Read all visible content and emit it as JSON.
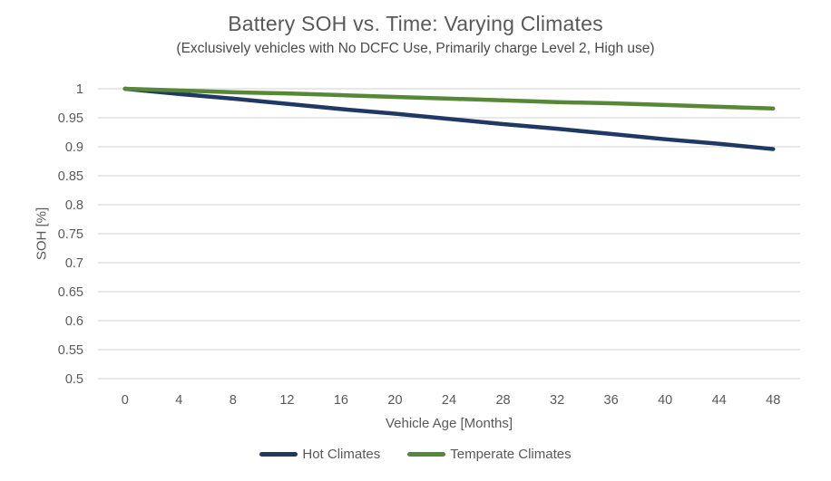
{
  "chart": {
    "title": "Battery SOH vs. Time: Varying Climates",
    "subtitle": "(Exclusively vehicles with No DCFC Use, Primarily charge Level 2, High use)",
    "xlabel": "Vehicle Age [Months]",
    "ylabel": "SOH [%]"
  },
  "chart_data": {
    "type": "line",
    "title": "Battery SOH vs. Time: Varying Climates",
    "subtitle": "(Exclusively vehicles with No DCFC Use, Primarily charge Level 2, High use)",
    "xlabel": "Vehicle Age [Months]",
    "ylabel": "SOH [%]",
    "x": [
      0,
      4,
      8,
      12,
      16,
      20,
      24,
      28,
      32,
      36,
      40,
      44,
      48
    ],
    "series": [
      {
        "name": "Hot Climates",
        "color": "#1F3864",
        "values": [
          1.0,
          0.991,
          0.983,
          0.974,
          0.965,
          0.957,
          0.948,
          0.939,
          0.931,
          0.922,
          0.913,
          0.905,
          0.896
        ]
      },
      {
        "name": "Temperate Climates",
        "color": "#568838",
        "values": [
          1.0,
          0.997,
          0.994,
          0.992,
          0.989,
          0.986,
          0.983,
          0.98,
          0.977,
          0.975,
          0.972,
          0.969,
          0.966
        ]
      }
    ],
    "ylim": [
      0.5,
      1.0
    ],
    "ytick_labels": [
      "1",
      "0.95",
      "0.9",
      "0.85",
      "0.8",
      "0.75",
      "0.7",
      "0.65",
      "0.6",
      "0.55",
      "0.5"
    ],
    "ytick_values": [
      1.0,
      0.95,
      0.9,
      0.85,
      0.8,
      0.75,
      0.7,
      0.65,
      0.6,
      0.55,
      0.5
    ],
    "grid": true,
    "gridline_color": "#D9D9D9",
    "text_color": "#595959",
    "legend_position": "bottom"
  }
}
